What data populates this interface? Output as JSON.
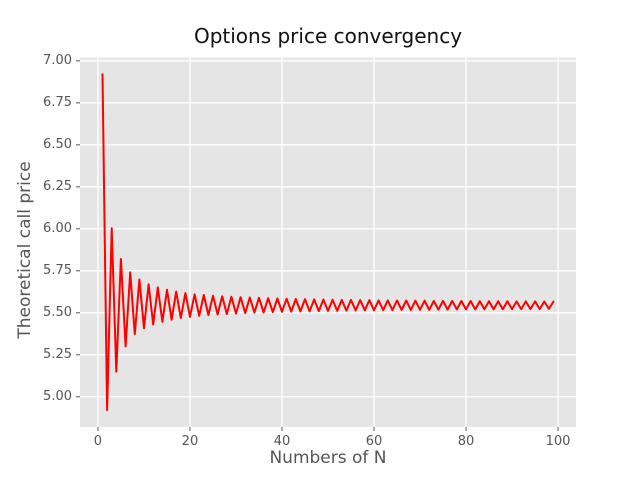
{
  "figure": {
    "title": "Options price convergency"
  },
  "chart_data": {
    "type": "line",
    "title": "Options price convergency",
    "xlabel": "Numbers of N",
    "ylabel": "Theoretical call price",
    "xlim": [
      -3.9,
      103.9
    ],
    "ylim": [
      4.82,
      7.02
    ],
    "xticks": [
      0,
      20,
      40,
      60,
      80,
      100
    ],
    "xtick_labels": [
      "0",
      "20",
      "40",
      "60",
      "80",
      "100"
    ],
    "yticks": [
      5.0,
      5.25,
      5.5,
      5.75,
      6.0,
      6.25,
      6.5,
      6.75,
      7.0
    ],
    "ytick_labels": [
      "5.00",
      "5.25",
      "5.50",
      "5.75",
      "6.00",
      "6.25",
      "6.50",
      "6.75",
      "7.00"
    ],
    "grid": true,
    "legend": "none",
    "plot_bg_color": "#e5e5e5",
    "grid_color": "#ffffff",
    "tick_color": "#555555",
    "series": [
      {
        "name": "theoretical-call-price",
        "color": "#ff0000",
        "line_width": 2,
        "x": [
          1,
          2,
          3,
          4,
          5,
          6,
          7,
          8,
          9,
          10,
          11,
          12,
          13,
          14,
          15,
          16,
          17,
          18,
          19,
          20,
          21,
          22,
          23,
          24,
          25,
          26,
          27,
          28,
          29,
          30,
          31,
          32,
          33,
          34,
          35,
          36,
          37,
          38,
          39,
          40,
          41,
          42,
          43,
          44,
          45,
          46,
          47,
          48,
          49,
          50,
          51,
          52,
          53,
          54,
          55,
          56,
          57,
          58,
          59,
          60,
          61,
          62,
          63,
          64,
          65,
          66,
          67,
          68,
          69,
          70,
          71,
          72,
          73,
          74,
          75,
          76,
          77,
          78,
          79,
          80,
          81,
          82,
          83,
          84,
          85,
          86,
          87,
          88,
          89,
          90,
          91,
          92,
          93,
          94,
          95,
          96,
          97,
          98,
          99
        ],
        "y": [
          6.92,
          4.92,
          6.003,
          5.15,
          5.82,
          5.3,
          5.741,
          5.373,
          5.698,
          5.408,
          5.67,
          5.43,
          5.651,
          5.447,
          5.637,
          5.459,
          5.626,
          5.469,
          5.617,
          5.476,
          5.61,
          5.482,
          5.606,
          5.486,
          5.602,
          5.49,
          5.598,
          5.493,
          5.595,
          5.496,
          5.593,
          5.498,
          5.591,
          5.501,
          5.589,
          5.502,
          5.587,
          5.504,
          5.585,
          5.506,
          5.584,
          5.507,
          5.582,
          5.508,
          5.581,
          5.509,
          5.58,
          5.51,
          5.579,
          5.511,
          5.578,
          5.512,
          5.577,
          5.513,
          5.577,
          5.514,
          5.576,
          5.515,
          5.575,
          5.515,
          5.574,
          5.516,
          5.574,
          5.516,
          5.573,
          5.517,
          5.573,
          5.517,
          5.572,
          5.518,
          5.572,
          5.518,
          5.571,
          5.519,
          5.571,
          5.519,
          5.571,
          5.52,
          5.57,
          5.52,
          5.57,
          5.52,
          5.569,
          5.521,
          5.569,
          5.521,
          5.569,
          5.521,
          5.569,
          5.522,
          5.568,
          5.522,
          5.568,
          5.522,
          5.568,
          5.522,
          5.567,
          5.523,
          5.567
        ]
      }
    ]
  }
}
